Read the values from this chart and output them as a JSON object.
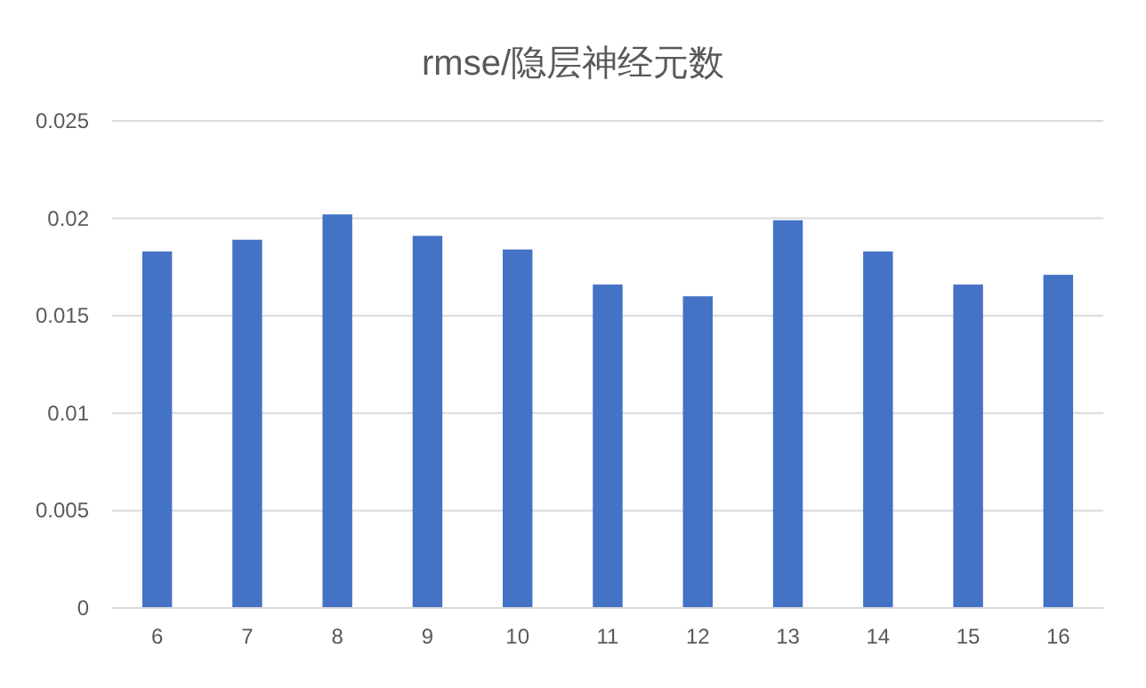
{
  "chart_data": {
    "type": "bar",
    "title": "rmse/隐层神经元数",
    "categories": [
      "6",
      "7",
      "8",
      "9",
      "10",
      "11",
      "12",
      "13",
      "14",
      "15",
      "16"
    ],
    "values": [
      0.0183,
      0.0189,
      0.0202,
      0.0191,
      0.0184,
      0.0166,
      0.016,
      0.0199,
      0.0183,
      0.0166,
      0.0171
    ],
    "color": "#4472c4",
    "ylim": [
      0,
      0.025
    ],
    "yticks": [
      0,
      0.005,
      0.01,
      0.015,
      0.02,
      0.025
    ],
    "grid": "y"
  }
}
